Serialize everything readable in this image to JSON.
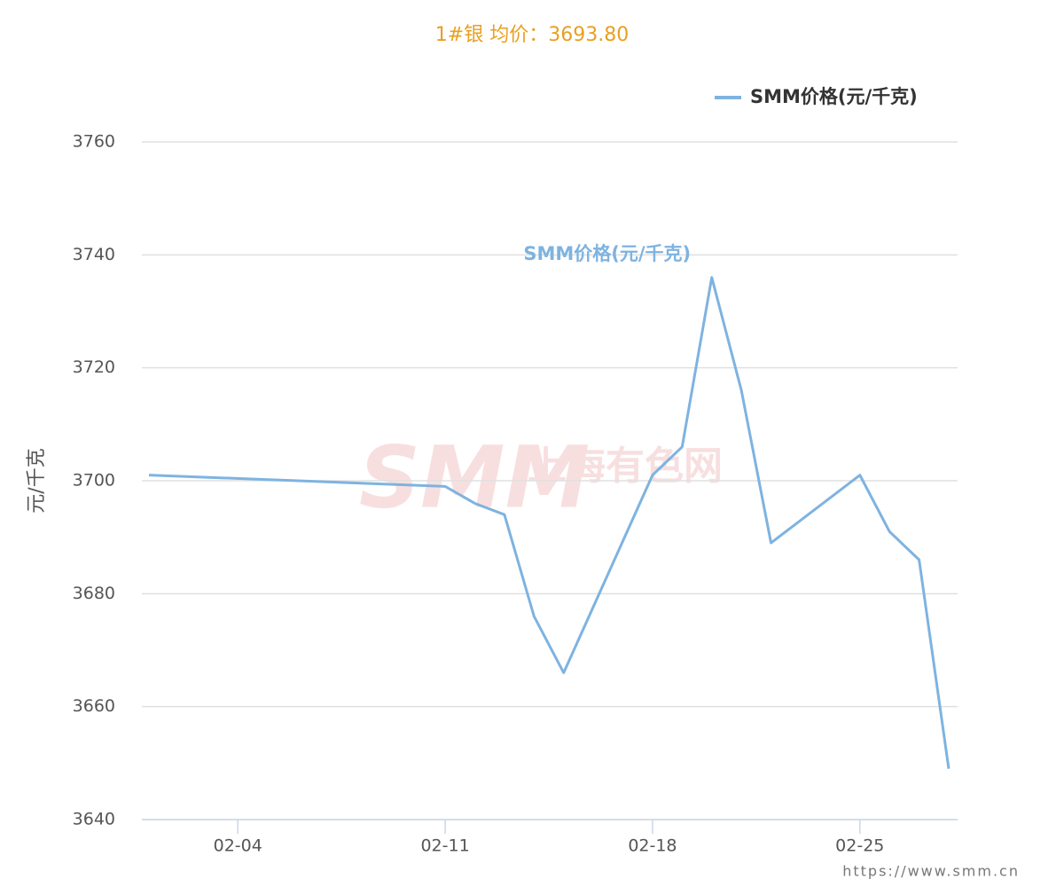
{
  "chart_data": {
    "type": "line",
    "title": "1#银 均价：3693.80",
    "ylabel": "元/千克",
    "series_label": "SMM价格(元/千克)",
    "watermark": {
      "logo": "SMM",
      "name": "上海有色网"
    },
    "footer": "https://www.smm.cn",
    "x": [
      "02-01",
      "02-11",
      "02-12",
      "02-13",
      "02-14",
      "02-15",
      "02-18",
      "02-19",
      "02-20",
      "02-21",
      "02-22",
      "02-25",
      "02-26",
      "02-27",
      "02-28"
    ],
    "series": [
      {
        "name": "SMM价格(元/千克)",
        "color": "#7eb3e0",
        "values": [
          3701,
          3699,
          3696,
          3694,
          3676,
          3666,
          3701,
          3706,
          3736,
          3716,
          3689,
          3701,
          3691,
          3686,
          3649
        ]
      }
    ],
    "xticks": [
      "02-04",
      "02-11",
      "02-18",
      "02-25"
    ],
    "ylim": [
      3640,
      3760
    ],
    "yticks": [
      3640,
      3660,
      3680,
      3700,
      3720,
      3740,
      3760
    ],
    "grid": true,
    "legend": "top-right"
  }
}
